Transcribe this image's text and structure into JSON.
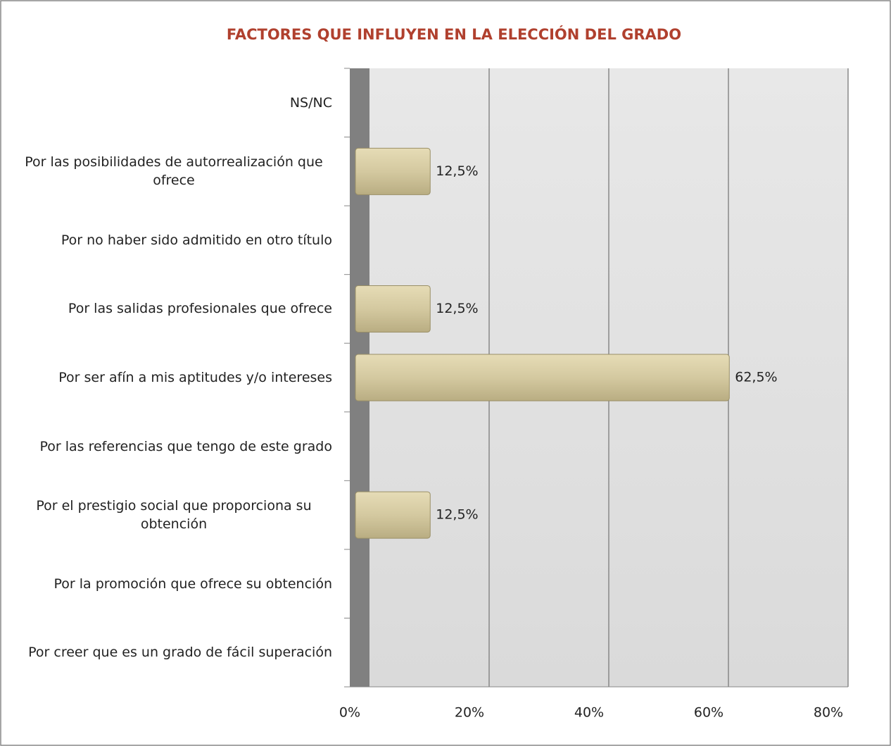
{
  "chart_data": {
    "type": "hbar",
    "title": "FACTORES QUE INFLUYEN EN LA ELECCIÓN DEL GRADO",
    "categories": [
      "NS/NC",
      "Por las posibilidades de autorrealización que ofrece",
      "Por no haber sido admitido en otro título",
      "Por las salidas profesionales que ofrece",
      "Por ser afín a mis aptitudes y/o intereses",
      "Por las referencias que tengo de este grado",
      "Por el prestigio social que proporciona su obtención",
      "Por la promoción que ofrece su obtención",
      "Por creer que es un grado de fácil superación"
    ],
    "values": [
      0,
      12.5,
      0,
      12.5,
      62.5,
      0,
      12.5,
      0,
      0
    ],
    "value_labels": [
      null,
      "12,5%",
      null,
      "12,5%",
      "62,5%",
      null,
      "12,5%",
      null,
      null
    ],
    "color": "#d4c9a0",
    "xlim": [
      0,
      80
    ],
    "xticks": [
      {
        "value": 0,
        "label": "0%"
      },
      {
        "value": 20,
        "label": "20%"
      },
      {
        "value": 40,
        "label": "40%"
      },
      {
        "value": 60,
        "label": "60%"
      },
      {
        "value": 80,
        "label": "80%"
      }
    ],
    "grid": true
  }
}
